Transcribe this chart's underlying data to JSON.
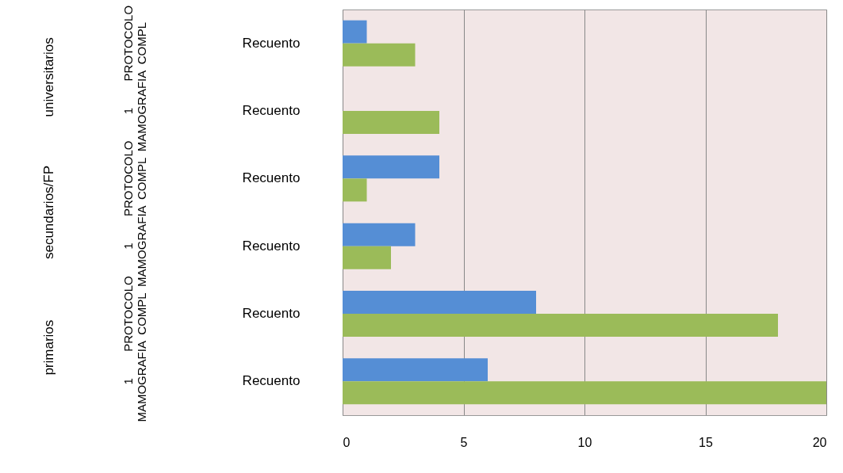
{
  "chart_data": {
    "type": "bar",
    "orientation": "horizontal",
    "categories": [
      "Recuento",
      "Recuento",
      "Recuento",
      "Recuento",
      "Recuento",
      "Recuento"
    ],
    "annotations": [
      "universitarios",
      "secundarios/FP",
      "primarios",
      "PROTOCOLO COMPL",
      "1 MAMOGRAFIA",
      "PROTOCOLO COMPL",
      "1 MAMOGRAFIA",
      "PROTOCOLO COMPL",
      "1 MAMOGRAFIA"
    ],
    "series": [
      {
        "color": "#558ed5",
        "values": [
          1,
          0,
          4,
          3,
          8,
          6
        ]
      },
      {
        "color": "#9bbb59",
        "values": [
          3,
          4,
          1,
          2,
          18,
          20
        ]
      }
    ],
    "xlim": [
      0,
      20
    ],
    "xticks": [
      0,
      5,
      10,
      15,
      20
    ],
    "grid": "x"
  }
}
